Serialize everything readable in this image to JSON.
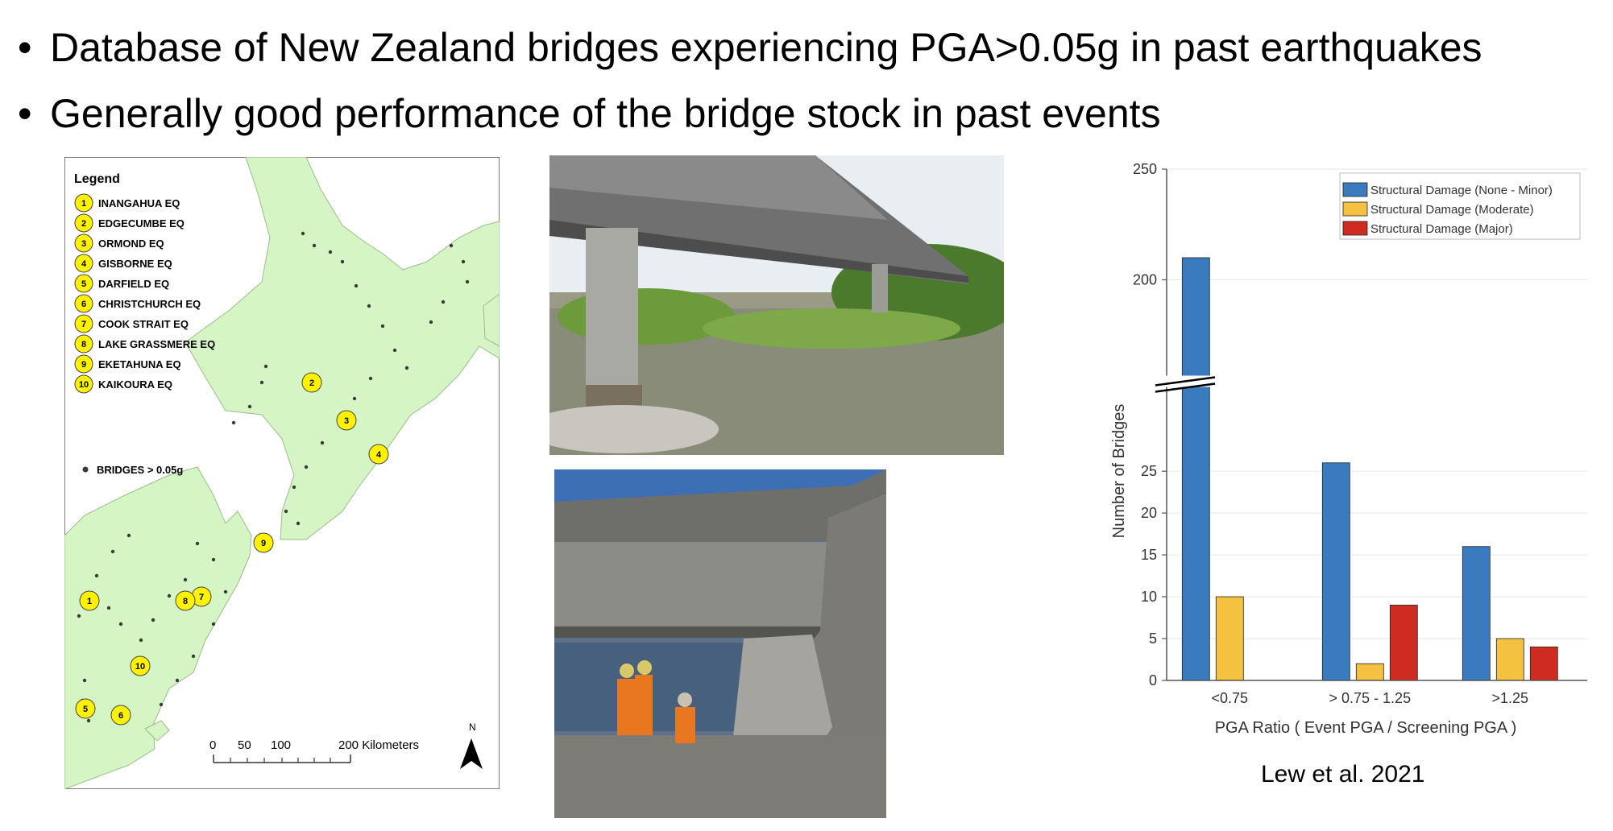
{
  "bullets": [
    "Database of New Zealand bridges experiencing PGA>0.05g in past earthquakes",
    "Generally good performance of the bridge stock in past events"
  ],
  "map": {
    "legend_title": "Legend",
    "events": [
      {
        "num": "1",
        "name": "INANGAHUA EQ"
      },
      {
        "num": "2",
        "name": "EDGECUMBE EQ"
      },
      {
        "num": "3",
        "name": "ORMOND EQ"
      },
      {
        "num": "4",
        "name": "GISBORNE EQ"
      },
      {
        "num": "5",
        "name": "DARFIELD EQ"
      },
      {
        "num": "6",
        "name": "CHRISTCHURCH EQ"
      },
      {
        "num": "7",
        "name": "COOK STRAIT EQ"
      },
      {
        "num": "8",
        "name": "LAKE GRASSMERE EQ"
      },
      {
        "num": "9",
        "name": "EKETAHUNA EQ"
      },
      {
        "num": "10",
        "name": "KAIKOURA EQ"
      }
    ],
    "bridges_label": "BRIDGES > 0.05g",
    "scale_labels": [
      "0",
      "50",
      "100",
      "200 Kilometers"
    ],
    "north_label": "N",
    "colors": {
      "land": "#d6f5c4",
      "marker": "#fff200",
      "bridge_dot": "#3a3a3a"
    }
  },
  "chart_data": {
    "type": "bar",
    "categories": [
      "<0.75",
      "> 0.75 - 1.25",
      ">1.25"
    ],
    "series": [
      {
        "name": "Structural Damage (None - Minor)",
        "values": [
          210,
          26,
          16
        ],
        "color": "#3a7bbf"
      },
      {
        "name": "Structural Damage (Moderate)",
        "values": [
          10,
          2,
          5
        ],
        "color": "#f4c140"
      },
      {
        "name": "Structural Damage (Major)",
        "values": [
          0,
          9,
          4
        ],
        "color": "#d02b20"
      }
    ],
    "xlabel": "PGA Ratio ( Event PGA / Screening PGA )",
    "ylabel": "Number of Bridges",
    "ylim": [
      0,
      250
    ],
    "y_axis_break": [
      28,
      190
    ],
    "yticks_lower": [
      0,
      5,
      10,
      15,
      20,
      25
    ],
    "yticks_upper": [
      200,
      250
    ],
    "grid": true,
    "legend_position": "top-right"
  },
  "citation": "Lew et al. 2021"
}
